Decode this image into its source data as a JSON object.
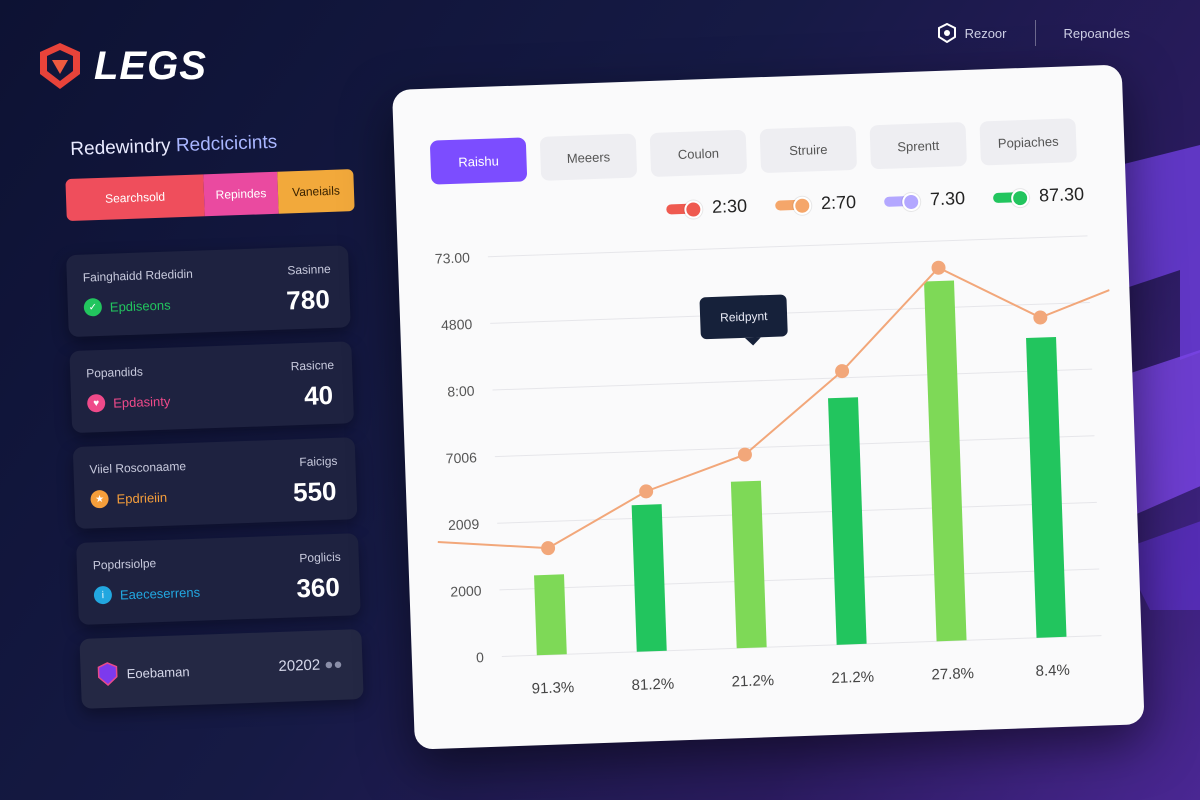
{
  "app": {
    "logo_text": "LEGS"
  },
  "topbar": {
    "brand_label": "Rezoor",
    "link_label": "Repoandes"
  },
  "left": {
    "title_a": "Redewindry",
    "title_b": "Redcicicints",
    "pills": [
      "Searchsold",
      "Repindes",
      "Vaneiails"
    ],
    "stats": [
      {
        "label": "Fainghaidd Rdedidin",
        "right_label": "Sasinne",
        "sub": "Epdiseons",
        "value": "780",
        "color": "#22c55e",
        "icon": "check-icon"
      },
      {
        "label": "Popandids",
        "right_label": "Rasicne",
        "sub": "Epdasinty",
        "value": "40",
        "color": "#ef4a8a",
        "icon": "heart-icon"
      },
      {
        "label": "Viiel Rosconaame",
        "right_label": "Faicigs",
        "sub": "Epdrieiin",
        "value": "550",
        "color": "#f59e3b",
        "icon": "star-icon"
      },
      {
        "label": "Popdrsiolpe",
        "right_label": "Poglicis",
        "sub": "Eaeceserrens",
        "value": "360",
        "color": "#22a7e0",
        "icon": "info-icon"
      }
    ],
    "footer": {
      "label": "Eoebaman",
      "value": "20202",
      "icon": "shield-icon"
    }
  },
  "tabs": [
    "Raishu",
    "Meeers",
    "Coulon",
    "Struire",
    "Sprentt",
    "Popiaches"
  ],
  "active_tab": 0,
  "legend": [
    {
      "value": "2:30",
      "color": "#ef5a50"
    },
    {
      "value": "2:70",
      "color": "#f5a66a"
    },
    {
      "value": "7.30",
      "color": "#b3a7ff"
    },
    {
      "value": "87.30",
      "color": "#22c55e"
    }
  ],
  "tooltip": {
    "label": "Reidpynt"
  },
  "colors": {
    "accent": "#7c4dff",
    "bar_light": "#7ed957",
    "bar_dark": "#22c55e",
    "line": "#f2a77a"
  },
  "chart_data": {
    "type": "bar",
    "y_tick_labels": [
      "0",
      "2000",
      "2009",
      "7006",
      "8:00",
      "4800",
      "73.00"
    ],
    "categories": [
      "91.3%",
      "81.2%",
      "21.2%",
      "21.2%",
      "27.8%",
      "8.4%"
    ],
    "series": [
      {
        "type": "bar",
        "values": [
          1.2,
          2.2,
          2.5,
          3.7,
          5.4,
          4.5
        ]
      },
      {
        "type": "line",
        "values": [
          1.6,
          2.4,
          2.9,
          4.1,
          5.6,
          4.8
        ]
      }
    ],
    "ylim": [
      0,
      6
    ],
    "grid": true
  }
}
